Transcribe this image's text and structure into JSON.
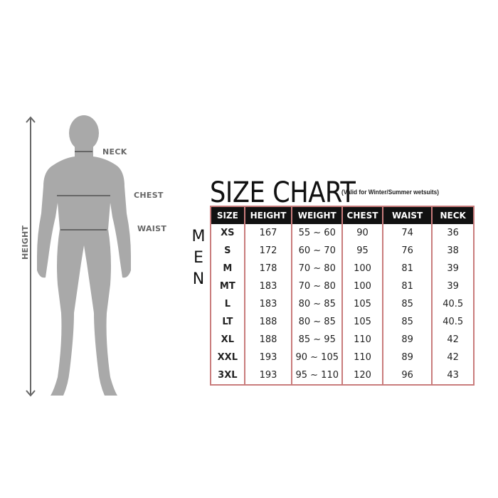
{
  "figure": {
    "labels": {
      "neck": "NECK",
      "chest": "CHEST",
      "waist": "WAIST",
      "height": "HEIGHT"
    },
    "silhouette_color": "#a9a9a9"
  },
  "chart": {
    "title": "SIZE CHART",
    "subtitle": "(Valid for Winter/Summer wetsuits)",
    "side_label": [
      "M",
      "E",
      "N"
    ],
    "border_color": "#c97c7c",
    "headers": [
      "SIZE",
      "HEIGHT",
      "WEIGHT",
      "CHEST",
      "WAIST",
      "NECK"
    ],
    "rows": [
      [
        "XS",
        "167",
        "55 ~ 60",
        "90",
        "74",
        "36"
      ],
      [
        "S",
        "172",
        "60 ~ 70",
        "95",
        "76",
        "38"
      ],
      [
        "M",
        "178",
        "70 ~ 80",
        "100",
        "81",
        "39"
      ],
      [
        "MT",
        "183",
        "70 ~ 80",
        "100",
        "81",
        "39"
      ],
      [
        "L",
        "183",
        "80 ~ 85",
        "105",
        "85",
        "40.5"
      ],
      [
        "LT",
        "188",
        "80 ~ 85",
        "105",
        "85",
        "40.5"
      ],
      [
        "XL",
        "188",
        "85 ~ 95",
        "110",
        "89",
        "42"
      ],
      [
        "XXL",
        "193",
        "90 ~ 105",
        "110",
        "89",
        "42"
      ],
      [
        "3XL",
        "193",
        "95 ~ 110",
        "120",
        "96",
        "43"
      ]
    ]
  }
}
